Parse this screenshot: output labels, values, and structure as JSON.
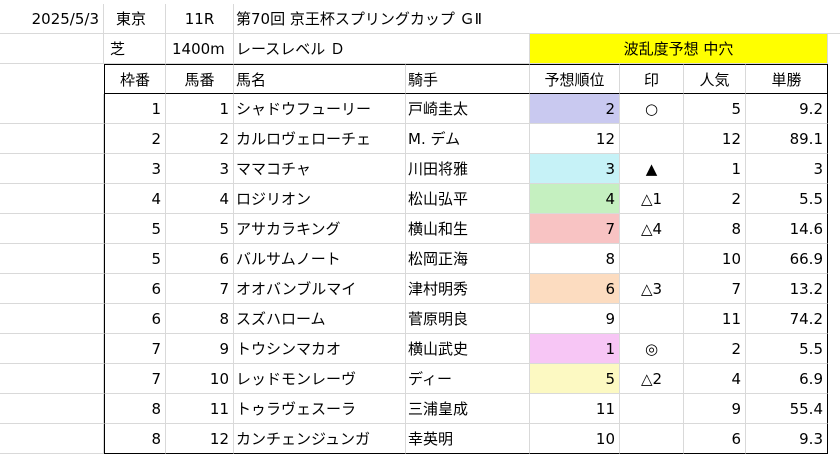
{
  "header": {
    "date": "2025/5/3",
    "venue": "東京",
    "race_no": "11R",
    "race_name": "第70回 京王杯スプリングカップ ＧⅡ",
    "surface": "芝",
    "distance": "1400m",
    "race_level": "レースレベル Ｄ",
    "banner": "波乱度予想 中穴"
  },
  "columns": [
    "枠番",
    "馬番",
    "馬名",
    "騎手",
    "予想順位",
    "印",
    "人気",
    "単勝"
  ],
  "rows": [
    {
      "waku": "1",
      "umaban": "1",
      "name": "シャドウフューリー",
      "jockey": "戸崎圭太",
      "rank": "2",
      "mark": "○",
      "pop": "5",
      "odds": "9.2",
      "color": "#c9c9f0"
    },
    {
      "waku": "2",
      "umaban": "2",
      "name": "カルロヴェローチェ",
      "jockey": "M. デム",
      "rank": "12",
      "mark": "",
      "pop": "12",
      "odds": "89.1",
      "color": ""
    },
    {
      "waku": "3",
      "umaban": "3",
      "name": "ママコチャ",
      "jockey": "川田将雅",
      "rank": "3",
      "mark": "▲",
      "pop": "1",
      "odds": "3",
      "color": "#c6f2f7"
    },
    {
      "waku": "4",
      "umaban": "4",
      "name": "ロジリオン",
      "jockey": "松山弘平",
      "rank": "4",
      "mark": "△1",
      "pop": "2",
      "odds": "5.5",
      "color": "#c5f0c0"
    },
    {
      "waku": "5",
      "umaban": "5",
      "name": "アサカラキング",
      "jockey": "横山和生",
      "rank": "7",
      "mark": "△4",
      "pop": "8",
      "odds": "14.6",
      "color": "#f8c3c3"
    },
    {
      "waku": "5",
      "umaban": "6",
      "name": "バルサムノート",
      "jockey": "松岡正海",
      "rank": "8",
      "mark": "",
      "pop": "10",
      "odds": "66.9",
      "color": ""
    },
    {
      "waku": "6",
      "umaban": "7",
      "name": "オオバンブルマイ",
      "jockey": "津村明秀",
      "rank": "6",
      "mark": "△3",
      "pop": "7",
      "odds": "13.2",
      "color": "#fcdcc0"
    },
    {
      "waku": "6",
      "umaban": "8",
      "name": "スズハローム",
      "jockey": "菅原明良",
      "rank": "9",
      "mark": "",
      "pop": "11",
      "odds": "74.2",
      "color": ""
    },
    {
      "waku": "7",
      "umaban": "9",
      "name": "トウシンマカオ",
      "jockey": "横山武史",
      "rank": "1",
      "mark": "◎",
      "pop": "2",
      "odds": "5.5",
      "color": "#f7c6f5"
    },
    {
      "waku": "7",
      "umaban": "10",
      "name": "レッドモンレーヴ",
      "jockey": "ディー",
      "rank": "5",
      "mark": "△2",
      "pop": "4",
      "odds": "6.9",
      "color": "#fcf9c2"
    },
    {
      "waku": "8",
      "umaban": "11",
      "name": "トゥラヴェスーラ",
      "jockey": "三浦皇成",
      "rank": "11",
      "mark": "",
      "pop": "9",
      "odds": "55.4",
      "color": ""
    },
    {
      "waku": "8",
      "umaban": "12",
      "name": "カンチェンジュンガ",
      "jockey": "幸英明",
      "rank": "10",
      "mark": "",
      "pop": "6",
      "odds": "9.3",
      "color": ""
    }
  ]
}
